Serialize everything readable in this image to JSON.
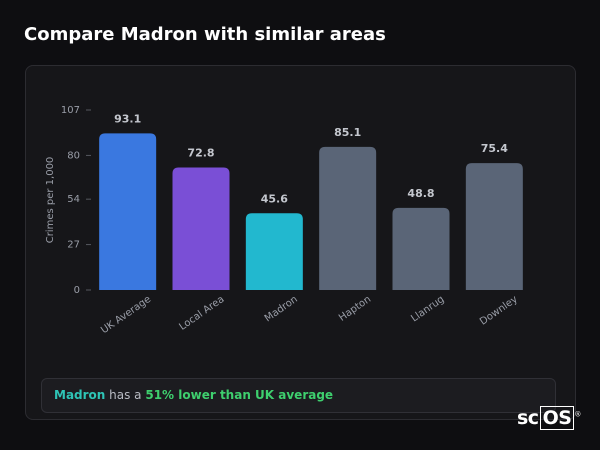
{
  "header": {
    "title": "Compare Madron with similar areas"
  },
  "chart_data": {
    "type": "bar",
    "y_label": "Crimes per 1,000",
    "categories": [
      "UK Average",
      "Local Area",
      "Madron",
      "Hapton",
      "Llanrug",
      "Downley"
    ],
    "values": [
      93.1,
      72.8,
      45.6,
      85.1,
      48.8,
      75.4
    ],
    "colors": [
      "#3a78e0",
      "#7a4fd6",
      "#22b8cf",
      "#5a6577",
      "#5a6577",
      "#5a6577"
    ],
    "ylim": [
      0,
      107
    ],
    "yticks": [
      0,
      27,
      54,
      80,
      107
    ]
  },
  "summary": {
    "place": "Madron",
    "middle": " has a ",
    "highlight": "51% lower than UK average"
  },
  "logo": {
    "left": "sc",
    "box": "OS",
    "mark": "®"
  }
}
